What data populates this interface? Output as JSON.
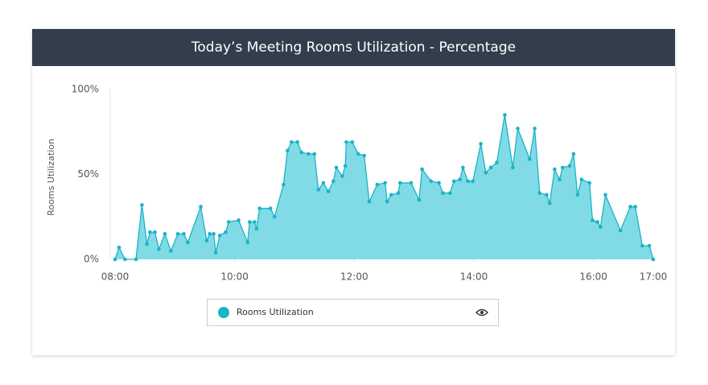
{
  "chart_data": {
    "type": "area",
    "title": "Today’s Meeting Rooms Utilization - Percentage",
    "y_label": "Rooms Utilization",
    "x": [
      480,
      484,
      490,
      501,
      507,
      512,
      515,
      520,
      524,
      530,
      536,
      543,
      549,
      553,
      566,
      572,
      575,
      579,
      581,
      585,
      591,
      594,
      604,
      613,
      615,
      620,
      622,
      625,
      636,
      640,
      649,
      653,
      657,
      663,
      667,
      674,
      680,
      684,
      689,
      694,
      699,
      702,
      708,
      711,
      712,
      718,
      724,
      730,
      735,
      743,
      751,
      753,
      757,
      764,
      766,
      777,
      785,
      788,
      797,
      805,
      809,
      816,
      820,
      826,
      829,
      834,
      839,
      847,
      852,
      857,
      863,
      871,
      879,
      884,
      896,
      901,
      906,
      913,
      916,
      921,
      926,
      929,
      936,
      940,
      944,
      948,
      956,
      959,
      964,
      967,
      972,
      987,
      997,
      1002,
      1009,
      1016,
      1020
    ],
    "series": [
      {
        "name": "Rooms Utilization",
        "color": "#1bb3c6",
        "fill": "#80dbe6",
        "values": [
          0,
          7,
          0,
          0,
          32,
          9,
          16,
          16,
          6,
          15,
          5,
          15,
          15,
          10,
          31,
          11,
          15,
          15,
          4,
          14,
          16,
          22,
          23,
          10,
          22,
          22,
          18,
          30,
          30,
          25,
          44,
          64,
          69,
          69,
          63,
          62,
          62,
          41,
          45,
          40,
          46,
          54,
          49,
          55,
          69,
          69,
          62,
          61,
          34,
          44,
          45,
          34,
          38,
          39,
          45,
          45,
          35,
          53,
          46,
          45,
          39,
          39,
          46,
          47,
          54,
          46,
          46,
          68,
          51,
          54,
          57,
          85,
          54,
          77,
          59,
          77,
          39,
          38,
          33,
          53,
          47,
          54,
          55,
          62,
          38,
          47,
          45,
          23,
          22,
          19,
          38,
          17,
          31,
          31,
          8,
          8,
          0
        ]
      }
    ],
    "xlim": [
      480,
      1020
    ],
    "xticks": [
      {
        "value": 480,
        "label": "08:00"
      },
      {
        "value": 600,
        "label": "10:00"
      },
      {
        "value": 720,
        "label": "12:00"
      },
      {
        "value": 840,
        "label": "14:00"
      },
      {
        "value": 960,
        "label": "16:00"
      },
      {
        "value": 1020,
        "label": "17:00"
      }
    ],
    "ylim": [
      0,
      100
    ],
    "yticks": [
      {
        "value": 0,
        "label": "0%"
      },
      {
        "value": 50,
        "label": "50%"
      },
      {
        "value": 100,
        "label": "100%"
      }
    ],
    "grid": false
  }
}
